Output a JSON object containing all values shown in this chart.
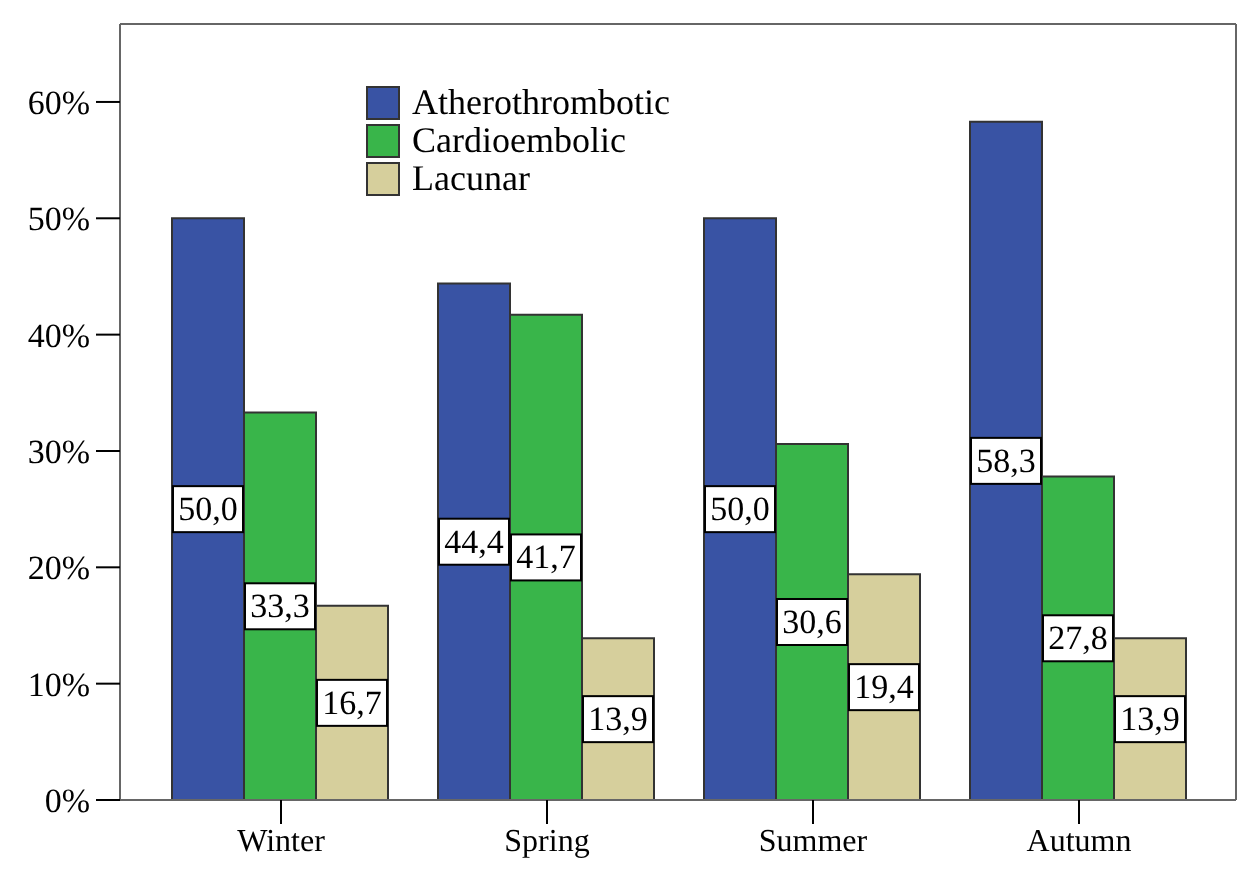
{
  "chart_data": {
    "type": "bar",
    "categories": [
      "Winter",
      "Spring",
      "Summer",
      "Autumn"
    ],
    "series": [
      {
        "name": "Atherothrombotic",
        "color": "#3953a4",
        "values": [
          50.0,
          44.4,
          50.0,
          58.3
        ],
        "value_labels": [
          "50,0",
          "44,4",
          "50,0",
          "58,3"
        ]
      },
      {
        "name": "Cardioembolic",
        "color": "#39b54a",
        "values": [
          33.3,
          41.7,
          30.6,
          27.8
        ],
        "value_labels": [
          "33,3",
          "41,7",
          "30,6",
          "27,8"
        ]
      },
      {
        "name": "Lacunar",
        "color": "#d6cf9c",
        "values": [
          16.7,
          13.9,
          19.4,
          13.9
        ],
        "value_labels": [
          "16,7",
          "13,9",
          "19,4",
          "13,9"
        ]
      }
    ],
    "ylim": [
      0,
      66.7
    ],
    "yticks": [
      {
        "value": 0,
        "label": "0%"
      },
      {
        "value": 10,
        "label": "10%"
      },
      {
        "value": 20,
        "label": "20%"
      },
      {
        "value": 30,
        "label": "30%"
      },
      {
        "value": 40,
        "label": "40%"
      },
      {
        "value": 50,
        "label": "50%"
      },
      {
        "value": 60,
        "label": "60%"
      }
    ],
    "legend": "top left"
  }
}
